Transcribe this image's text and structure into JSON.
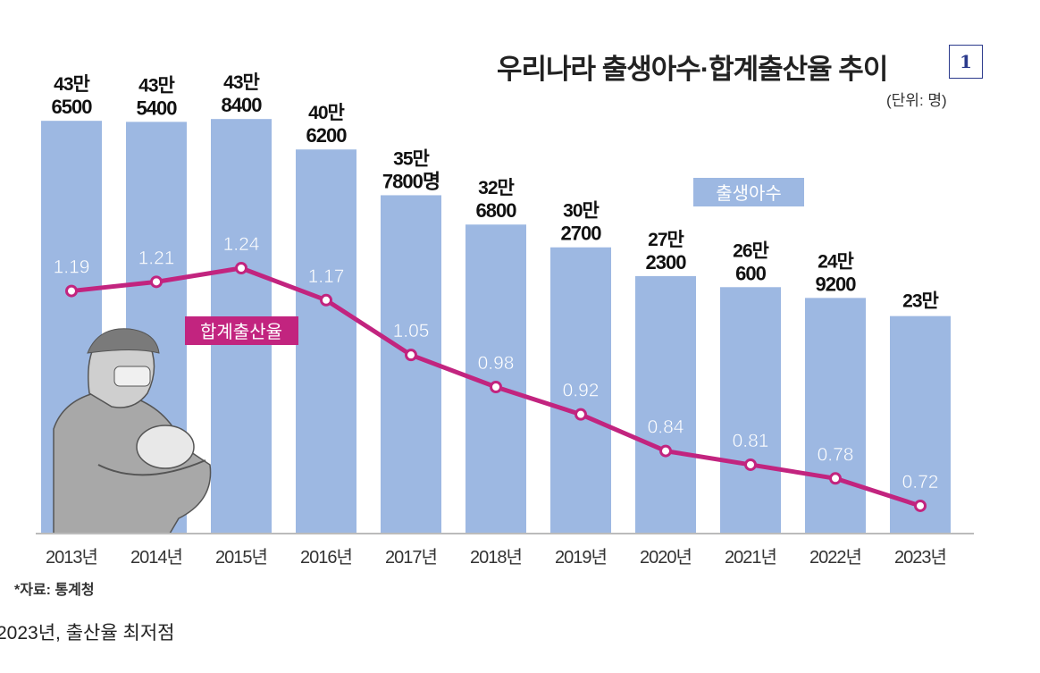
{
  "chart_data": {
    "type": "bar+line",
    "title": "우리나라 출생아수·합계출산율 추이",
    "unit": "(단위: 명)",
    "categories": [
      "2013년",
      "2014년",
      "2015년",
      "2016년",
      "2017년",
      "2018년",
      "2019년",
      "2020년",
      "2021년",
      "2022년",
      "2023년"
    ],
    "series": [
      {
        "name": "출생아수",
        "type": "bar",
        "color": "#9db8e2",
        "values": [
          436500,
          435400,
          438400,
          406200,
          357800,
          326800,
          302700,
          272300,
          260600,
          249200,
          230000
        ],
        "labels_top": [
          "43만",
          "43만",
          "43만",
          "40만",
          "35만",
          "32만",
          "30만",
          "27만",
          "26만",
          "24만",
          "23만"
        ],
        "labels_bottom": [
          "6500",
          "5400",
          "8400",
          "6200",
          "7800명",
          "6800",
          "2700",
          "2300",
          "600",
          "9200",
          ""
        ]
      },
      {
        "name": "합계출산율",
        "type": "line",
        "color": "#c2247f",
        "values": [
          1.19,
          1.21,
          1.24,
          1.17,
          1.05,
          0.98,
          0.92,
          0.84,
          0.81,
          0.78,
          0.72
        ],
        "labels": [
          "1.19",
          "1.21",
          "1.24",
          "1.17",
          "1.05",
          "0.98",
          "0.92",
          "0.84",
          "0.81",
          "0.78",
          "0.72"
        ]
      }
    ],
    "legend": {
      "bar": "출생아수",
      "line": "합계출산율"
    },
    "source": "*자료: 통계청"
  },
  "badge": "1",
  "caption": "2023년, 출산율 최저점"
}
